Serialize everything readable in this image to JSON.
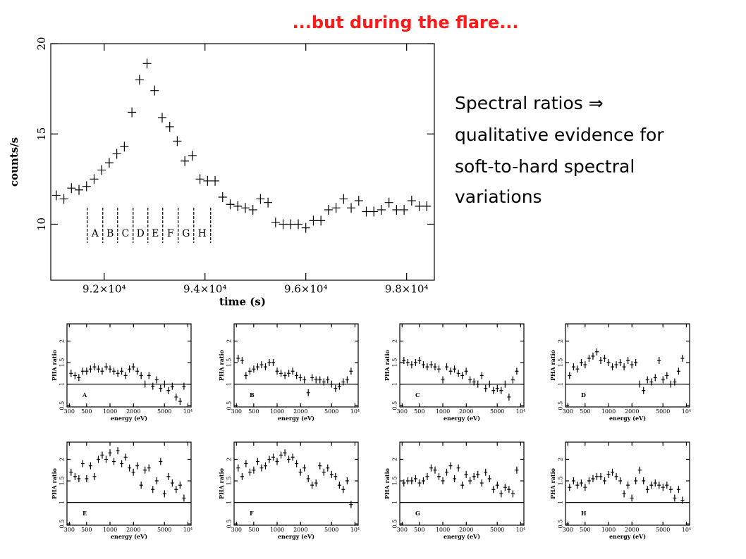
{
  "title": "...but during the flare...",
  "text_lines": [
    "Spectral ratios ⇒",
    "qualitative evidence for",
    "soft-to-hard spectral",
    "variations"
  ],
  "chart_data": [
    {
      "type": "scatter",
      "xlabel": "time (s)",
      "ylabel": "counts/s",
      "x": [
        91050,
        91200,
        91350,
        91500,
        91650,
        91800,
        91950,
        92100,
        92250,
        92400,
        92550,
        92700,
        92850,
        93000,
        93150,
        93300,
        93450,
        93600,
        93750,
        93900,
        94050,
        94200,
        94350,
        94500,
        94650,
        94800,
        94950,
        95100,
        95250,
        95400,
        95550,
        95700,
        95850,
        96000,
        96150,
        96300,
        96450,
        96600,
        96750,
        96900,
        97050,
        97200,
        97350,
        97500,
        97650,
        97800,
        97950,
        98100,
        98250,
        98400
      ],
      "values": [
        11.6,
        11.4,
        12.0,
        11.9,
        12.1,
        12.5,
        13.0,
        13.4,
        13.9,
        14.3,
        16.2,
        18.0,
        18.9,
        17.4,
        15.9,
        15.4,
        14.6,
        13.5,
        13.8,
        12.5,
        12.4,
        12.4,
        11.5,
        11.1,
        11.0,
        10.9,
        10.8,
        11.4,
        11.2,
        10.1,
        10.0,
        10.0,
        10.0,
        9.8,
        10.2,
        10.2,
        10.8,
        10.9,
        11.4,
        10.9,
        11.3,
        10.7,
        10.7,
        10.8,
        11.2,
        10.8,
        10.8,
        11.3,
        11.0,
        11.0
      ],
      "xlim": [
        90940,
        98550
      ],
      "ylim": [
        6.9,
        20
      ],
      "xticks": [
        {
          "value": 92000,
          "label": "9.2×10⁴"
        },
        {
          "value": 94000,
          "label": "9.4×10⁴"
        },
        {
          "value": 96000,
          "label": "9.6×10⁴"
        },
        {
          "value": 98000,
          "label": "9.8×10⁴"
        }
      ],
      "yticks": [
        10,
        15,
        20
      ],
      "interval_edges": [
        91664,
        91972,
        92266,
        92574,
        92867,
        93161,
        93469,
        93777,
        94112
      ],
      "interval_labels": [
        "A",
        "B",
        "C",
        "D",
        "E",
        "F",
        "G",
        "H"
      ]
    },
    {
      "type": "scatter",
      "label": "A",
      "xlabel": "energy (eV)",
      "ylabel": "PHA ratio",
      "xlog": true,
      "hline": 1,
      "xlim": [
        280,
        11000
      ],
      "ylim": [
        0.47,
        2.4
      ],
      "xticks": [
        300,
        500,
        1000,
        2000,
        5000,
        {
          "value": 10000,
          "label": "10⁴"
        }
      ],
      "yticks": [
        0.5,
        1,
        1.5,
        2
      ],
      "x": [
        316,
        355,
        398,
        447,
        501,
        562,
        631,
        708,
        794,
        891,
        1000,
        1122,
        1259,
        1413,
        1585,
        1778,
        1995,
        2239,
        2512,
        2818,
        3162,
        3548,
        3981,
        4467,
        5012,
        5623,
        6310,
        7079,
        7943,
        8913
      ],
      "values": [
        1.25,
        1.2,
        1.15,
        1.3,
        1.3,
        1.35,
        1.4,
        1.35,
        1.3,
        1.4,
        1.35,
        1.3,
        1.25,
        1.3,
        1.2,
        1.35,
        1.4,
        1.3,
        1.2,
        1.0,
        1.2,
        0.95,
        1.1,
        0.9,
        1.0,
        0.85,
        0.95,
        0.7,
        0.6,
        0.95
      ]
    },
    {
      "type": "scatter",
      "label": "B",
      "xlabel": "energy (eV)",
      "ylabel": "PHA ratio",
      "xlog": true,
      "hline": 1,
      "xlim": [
        280,
        11000
      ],
      "ylim": [
        0.47,
        2.4
      ],
      "xticks": [
        300,
        500,
        1000,
        2000,
        5000,
        {
          "value": 10000,
          "label": "10⁴"
        }
      ],
      "yticks": [
        0.5,
        1,
        1.5,
        2
      ],
      "x": [
        316,
        355,
        398,
        447,
        501,
        562,
        631,
        708,
        794,
        891,
        1000,
        1122,
        1259,
        1413,
        1585,
        1778,
        1995,
        2239,
        2512,
        2818,
        3162,
        3548,
        3981,
        4467,
        5012,
        5623,
        6310,
        7079,
        7943,
        8913
      ],
      "values": [
        1.6,
        1.55,
        1.2,
        1.3,
        1.35,
        1.4,
        1.45,
        1.4,
        1.5,
        1.5,
        1.3,
        1.25,
        1.2,
        1.25,
        1.3,
        1.2,
        1.15,
        1.1,
        0.8,
        1.15,
        1.1,
        1.1,
        1.05,
        1.1,
        1.0,
        0.9,
        0.95,
        1.05,
        1.1,
        1.3
      ]
    },
    {
      "type": "scatter",
      "label": "C",
      "xlabel": "energy (eV)",
      "ylabel": "PHA ratio",
      "xlog": true,
      "hline": 1,
      "xlim": [
        280,
        11000
      ],
      "ylim": [
        0.47,
        2.4
      ],
      "xticks": [
        300,
        500,
        1000,
        2000,
        5000,
        {
          "value": 10000,
          "label": "10⁴"
        }
      ],
      "yticks": [
        0.5,
        1,
        1.5,
        2
      ],
      "x": [
        316,
        355,
        398,
        447,
        501,
        562,
        631,
        708,
        794,
        891,
        1000,
        1122,
        1259,
        1413,
        1585,
        1778,
        1995,
        2239,
        2512,
        2818,
        3162,
        3548,
        3981,
        4467,
        5012,
        5623,
        6310,
        7079,
        7943,
        8913
      ],
      "values": [
        1.55,
        1.5,
        1.45,
        1.5,
        1.55,
        1.45,
        1.4,
        1.45,
        1.4,
        1.35,
        1.1,
        1.4,
        1.3,
        1.35,
        1.25,
        1.2,
        1.3,
        1.1,
        1.05,
        1.0,
        1.2,
        0.9,
        1.0,
        0.85,
        0.9,
        0.85,
        1.0,
        0.7,
        1.1,
        1.3
      ]
    },
    {
      "type": "scatter",
      "label": "D",
      "xlabel": "energy (eV)",
      "ylabel": "PHA ratio",
      "xlog": true,
      "hline": 1,
      "xlim": [
        280,
        11000
      ],
      "ylim": [
        0.47,
        2.4
      ],
      "xticks": [
        300,
        500,
        1000,
        2000,
        5000,
        {
          "value": 10000,
          "label": "10⁴"
        }
      ],
      "yticks": [
        0.5,
        1,
        1.5,
        2
      ],
      "x": [
        316,
        355,
        398,
        447,
        501,
        562,
        631,
        708,
        794,
        891,
        1000,
        1122,
        1259,
        1413,
        1585,
        1778,
        1995,
        2239,
        2512,
        2818,
        3162,
        3548,
        3981,
        4467,
        5012,
        5623,
        6310,
        7079,
        7943,
        8913
      ],
      "values": [
        1.2,
        1.4,
        1.35,
        1.5,
        1.45,
        1.6,
        1.65,
        1.75,
        1.55,
        1.6,
        1.5,
        1.4,
        1.45,
        1.5,
        1.4,
        1.55,
        1.45,
        1.5,
        1.0,
        0.85,
        1.1,
        1.05,
        1.15,
        1.55,
        1.1,
        1.2,
        1.0,
        1.05,
        1.3,
        1.6
      ]
    },
    {
      "type": "scatter",
      "label": "E",
      "xlabel": "energy (eV)",
      "ylabel": "PHA ratio",
      "xlog": true,
      "hline": 1,
      "xlim": [
        280,
        11000
      ],
      "ylim": [
        0.47,
        2.4
      ],
      "xticks": [
        300,
        500,
        1000,
        2000,
        5000,
        {
          "value": 10000,
          "label": "10⁴"
        }
      ],
      "yticks": [
        0.5,
        1,
        1.5,
        2
      ],
      "x": [
        316,
        355,
        398,
        447,
        501,
        562,
        631,
        708,
        794,
        891,
        1000,
        1122,
        1259,
        1413,
        1585,
        1778,
        1995,
        2239,
        2512,
        2818,
        3162,
        3548,
        3981,
        4467,
        5012,
        5623,
        6310,
        7079,
        7943,
        8913
      ],
      "values": [
        1.7,
        1.6,
        1.55,
        1.9,
        1.55,
        1.85,
        1.6,
        2.0,
        2.1,
        2.0,
        2.15,
        1.95,
        2.2,
        1.9,
        2.05,
        1.8,
        1.7,
        1.85,
        1.4,
        1.75,
        1.8,
        1.3,
        1.5,
        1.95,
        1.2,
        1.6,
        1.45,
        1.3,
        1.4,
        1.1
      ]
    },
    {
      "type": "scatter",
      "label": "F",
      "xlabel": "energy (eV)",
      "ylabel": "PHA ratio",
      "xlog": true,
      "hline": 1,
      "xlim": [
        280,
        11000
      ],
      "ylim": [
        0.47,
        2.4
      ],
      "xticks": [
        300,
        500,
        1000,
        2000,
        5000,
        {
          "value": 10000,
          "label": "10⁴"
        }
      ],
      "yticks": [
        0.5,
        1,
        1.5,
        2
      ],
      "x": [
        316,
        355,
        398,
        447,
        501,
        562,
        631,
        708,
        794,
        891,
        1000,
        1122,
        1259,
        1413,
        1585,
        1778,
        1995,
        2239,
        2512,
        2818,
        3162,
        3548,
        3981,
        4467,
        5012,
        5623,
        6310,
        7079,
        7943,
        8913
      ],
      "values": [
        1.8,
        1.6,
        1.9,
        1.7,
        1.75,
        1.95,
        1.8,
        1.85,
        2.0,
        2.05,
        1.95,
        2.1,
        2.15,
        2.0,
        2.05,
        1.9,
        1.7,
        1.8,
        1.55,
        1.4,
        1.45,
        1.85,
        1.7,
        1.8,
        1.65,
        1.6,
        1.4,
        1.3,
        1.5,
        0.95
      ]
    },
    {
      "type": "scatter",
      "label": "G",
      "xlabel": "energy (eV)",
      "ylabel": "PHA ratio",
      "xlog": true,
      "hline": 1,
      "xlim": [
        280,
        11000
      ],
      "ylim": [
        0.47,
        2.4
      ],
      "xticks": [
        300,
        500,
        1000,
        2000,
        5000,
        {
          "value": 10000,
          "label": "10⁴"
        }
      ],
      "yticks": [
        0.5,
        1,
        1.5,
        2
      ],
      "x": [
        316,
        355,
        398,
        447,
        501,
        562,
        631,
        708,
        794,
        891,
        1000,
        1122,
        1259,
        1413,
        1585,
        1778,
        1995,
        2239,
        2512,
        2818,
        3162,
        3548,
        3981,
        4467,
        5012,
        5623,
        6310,
        7079,
        7943,
        8913
      ],
      "values": [
        1.45,
        1.5,
        1.5,
        1.55,
        1.45,
        1.5,
        1.6,
        1.8,
        1.75,
        1.6,
        1.5,
        1.7,
        1.85,
        1.55,
        1.8,
        1.4,
        1.65,
        1.5,
        1.6,
        1.65,
        1.45,
        1.7,
        1.55,
        1.3,
        1.4,
        1.2,
        1.35,
        1.3,
        1.2,
        1.75
      ]
    },
    {
      "type": "scatter",
      "label": "H",
      "xlabel": "energy (eV)",
      "ylabel": "PHA ratio",
      "xlog": true,
      "hline": 1,
      "xlim": [
        280,
        11000
      ],
      "ylim": [
        0.47,
        2.4
      ],
      "xticks": [
        300,
        500,
        1000,
        2000,
        5000,
        {
          "value": 10000,
          "label": "10⁴"
        }
      ],
      "yticks": [
        0.5,
        1,
        1.5,
        2
      ],
      "x": [
        316,
        355,
        398,
        447,
        501,
        562,
        631,
        708,
        794,
        891,
        1000,
        1122,
        1259,
        1413,
        1585,
        1778,
        1995,
        2239,
        2512,
        2818,
        3162,
        3548,
        3981,
        4467,
        5012,
        5623,
        6310,
        7079,
        7943,
        8913
      ],
      "values": [
        1.35,
        1.5,
        1.4,
        1.45,
        1.35,
        1.5,
        1.55,
        1.6,
        1.6,
        1.5,
        1.65,
        1.7,
        1.6,
        1.5,
        1.2,
        1.4,
        1.1,
        1.5,
        1.75,
        1.5,
        1.3,
        1.4,
        1.45,
        1.4,
        1.35,
        1.4,
        1.3,
        1.1,
        1.3,
        1.05
      ]
    }
  ]
}
